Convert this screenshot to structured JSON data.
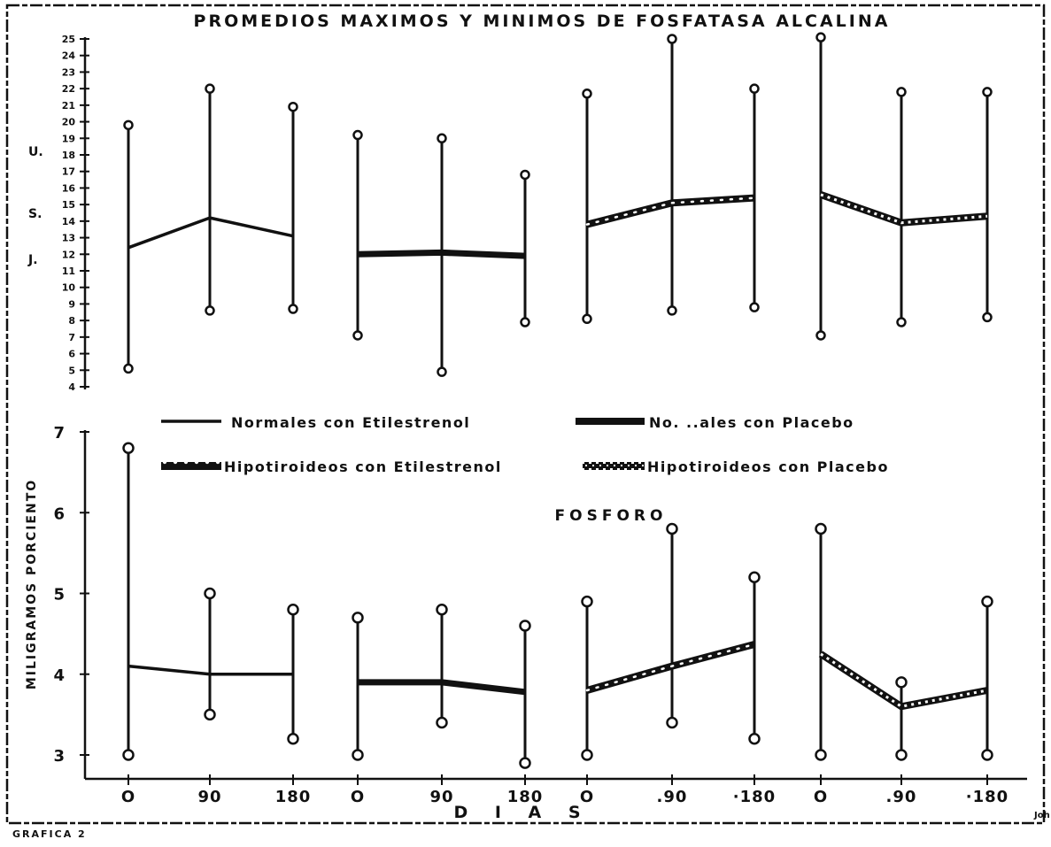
{
  "figure_caption": "GRAFICA 2",
  "corner_mark": "Joh",
  "x_axis_label": "D I A S",
  "chart_data": [
    {
      "type": "line",
      "title": "PROMEDIOS MAXIMOS Y MINIMOS DE FOSFATASA ALCALINA",
      "ylabel_chars": [
        "U.",
        "S.",
        "J."
      ],
      "ylim": [
        4,
        25
      ],
      "yticks": [
        4,
        5,
        6,
        7,
        8,
        9,
        10,
        11,
        12,
        13,
        14,
        15,
        16,
        17,
        18,
        19,
        20,
        21,
        22,
        23,
        24,
        25
      ],
      "x_tick_labels": [
        "O",
        "90",
        "180",
        "O",
        "90",
        "180",
        "O",
        ".90",
        "·180",
        "O",
        ".90",
        "·180"
      ],
      "series": [
        {
          "name": "Normales con Etilestrenol",
          "style": "thin",
          "x_index": [
            0,
            1,
            2
          ],
          "days": [
            0,
            90,
            180
          ],
          "mean": [
            12.4,
            14.2,
            13.1
          ],
          "max": [
            19.8,
            22.0,
            20.9
          ],
          "min": [
            5.1,
            8.6,
            8.7
          ]
        },
        {
          "name": "Normales con Placebo",
          "style": "thick",
          "x_index": [
            3,
            4,
            5
          ],
          "days": [
            0,
            90,
            180
          ],
          "mean": [
            12.0,
            12.1,
            11.9
          ],
          "max": [
            19.2,
            19.0,
            16.8
          ],
          "min": [
            7.1,
            4.9,
            7.9
          ]
        },
        {
          "name": "Hipotiroideos con Etilestrenol",
          "style": "dotted",
          "x_index": [
            6,
            7,
            8
          ],
          "days": [
            0,
            90,
            180
          ],
          "mean": [
            13.8,
            15.1,
            15.4
          ],
          "max": [
            21.7,
            25.0,
            22.0
          ],
          "min": [
            8.1,
            8.6,
            8.8
          ]
        },
        {
          "name": "Hipotiroideos con Placebo",
          "style": "checkered",
          "x_index": [
            9,
            10,
            11
          ],
          "days": [
            0,
            90,
            180
          ],
          "mean": [
            15.6,
            13.9,
            14.3
          ],
          "max": [
            25.1,
            21.8,
            21.8
          ],
          "min": [
            7.1,
            7.9,
            8.2
          ]
        }
      ]
    },
    {
      "type": "line",
      "title": "FOSFORO",
      "ylabel": "MILIGRAMOS PORCIENTO",
      "ylim": [
        3,
        7
      ],
      "yticks": [
        3,
        4,
        5,
        6,
        7
      ],
      "x_tick_labels": [
        "O",
        "90",
        "180",
        "O",
        "90",
        "180",
        "O",
        ".90",
        "·180",
        "O",
        ".90",
        "·180"
      ],
      "series": [
        {
          "name": "Normales con Etilestrenol",
          "style": "thin",
          "x_index": [
            0,
            1,
            2
          ],
          "days": [
            0,
            90,
            180
          ],
          "mean": [
            4.1,
            4.0,
            4.0
          ],
          "max": [
            6.8,
            5.0,
            4.8
          ],
          "min": [
            3.0,
            3.5,
            3.2
          ]
        },
        {
          "name": "Normales con Placebo",
          "style": "thick",
          "x_index": [
            3,
            4,
            5
          ],
          "days": [
            0,
            90,
            180
          ],
          "mean": [
            3.9,
            3.9,
            3.78
          ],
          "max": [
            4.7,
            4.8,
            4.6
          ],
          "min": [
            3.0,
            3.4,
            2.9
          ]
        },
        {
          "name": "Hipotiroideos con Etilestrenol",
          "style": "dotted",
          "x_index": [
            6,
            7,
            8
          ],
          "days": [
            0,
            90,
            180
          ],
          "mean": [
            3.8,
            4.1,
            4.37
          ],
          "max": [
            4.9,
            5.8,
            5.2
          ],
          "min": [
            3.0,
            3.4,
            3.2
          ]
        },
        {
          "name": "Hipotiroideos con Placebo",
          "style": "checkered",
          "x_index": [
            9,
            10,
            11
          ],
          "days": [
            0,
            90,
            180
          ],
          "mean": [
            4.25,
            3.6,
            3.8
          ],
          "max": [
            5.8,
            3.9,
            4.9
          ],
          "min": [
            3.0,
            3.0,
            3.0
          ]
        }
      ]
    }
  ],
  "legend": {
    "items": [
      {
        "label": "Normales con Etilestrenol",
        "style": "thin"
      },
      {
        "label": "No. ..ales con Placebo",
        "style": "thick"
      },
      {
        "label": "Hipotiroideos  con  Etilestrenol",
        "style": "dotted"
      },
      {
        "label": "Hipotiroideos  con  Placebo",
        "style": "checkered"
      }
    ]
  },
  "colors": {
    "ink": "#111111",
    "paper": "#ffffff"
  }
}
